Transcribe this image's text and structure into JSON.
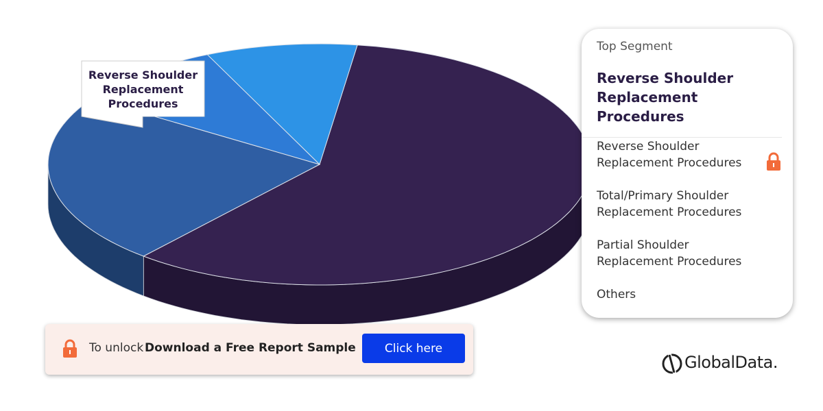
{
  "chart_data": {
    "type": "pie",
    "categories": [
      "Reverse Shoulder Replacement Procedures",
      "Total/Primary Shoulder Replacement Procedures",
      "Partial Shoulder Replacement Procedures",
      "Others"
    ],
    "values": [
      59,
      23,
      9,
      9
    ],
    "colors": [
      "#352250",
      "#2f5ea3",
      "#2e7bd6",
      "#2d93e6"
    ],
    "side_colors": [
      "#221535",
      "#1d3d6b",
      "#163a62",
      "#0f3558"
    ]
  },
  "panel": {
    "label": "Top Segment",
    "top_segment": "Reverse Shoulder Replacement Procedures"
  },
  "banner": {
    "prefix": "To unlock",
    "text": "Download a Free Report Sample",
    "button": "Click here"
  },
  "brand": "GlobalData."
}
